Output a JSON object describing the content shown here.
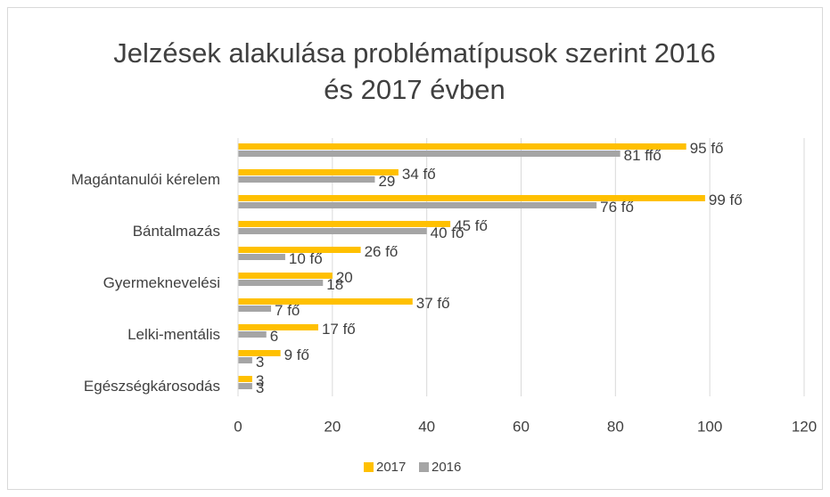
{
  "chart_data": {
    "type": "bar",
    "orientation": "horizontal",
    "title": [
      "Jelzések alakulása problématípusok szerint 2016",
      "és 2017 évben"
    ],
    "categories": [
      null,
      "Magántanulói kérelem",
      null,
      "Bántalmazás",
      null,
      "Gyermeknevelési",
      null,
      "Lelki-mentális",
      null,
      "Egészségkárosodás"
    ],
    "series": [
      {
        "name": "2017",
        "color": "#FFC000",
        "values": [
          95,
          34,
          99,
          45,
          26,
          20,
          37,
          17,
          9,
          3
        ],
        "value_labels": [
          "95 fő",
          "34 fő",
          "99 fő",
          "45 fő",
          "26 fő",
          "20",
          "37 fő",
          "17 fő",
          "9 fő",
          "3"
        ]
      },
      {
        "name": "2016",
        "color": "#A5A5A5",
        "values": [
          81,
          29,
          76,
          40,
          10,
          18,
          7,
          6,
          3,
          3
        ],
        "value_labels": [
          "81 ffő",
          "29",
          "76 fő",
          "40 fő",
          "10 fő",
          "18",
          "7 fő",
          "6",
          "3",
          "3"
        ]
      }
    ],
    "xlim": [
      0,
      120
    ],
    "xticks": [
      0,
      20,
      40,
      60,
      80,
      100,
      120
    ],
    "grid": true,
    "legend": "bottom"
  }
}
